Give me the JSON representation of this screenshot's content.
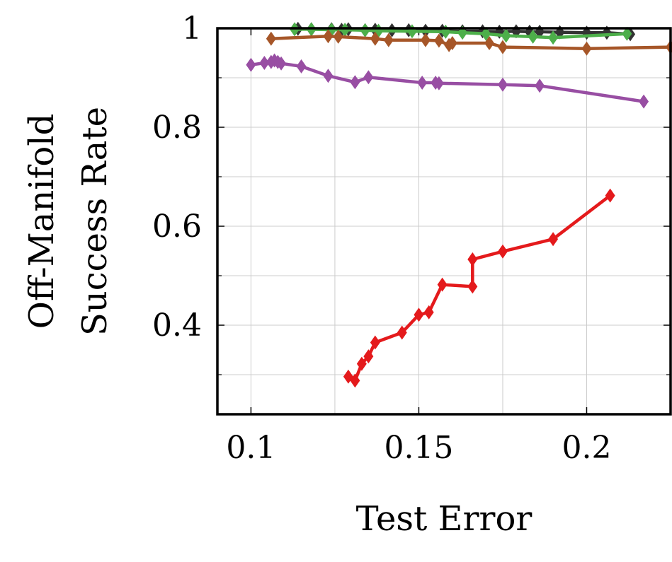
{
  "chart_data": {
    "type": "line",
    "xlabel": "Test Error",
    "ylabel": [
      "Off-Manifold",
      "Success Rate"
    ],
    "xlim": [
      0.09,
      0.225
    ],
    "ylim": [
      0.22,
      1.0
    ],
    "xticks": [
      0.1,
      0.15,
      0.2
    ],
    "xtick_labels": [
      "0.1",
      "0.15",
      "0.2"
    ],
    "yticks": [
      0.4,
      0.6,
      0.8,
      1.0
    ],
    "ytick_labels": [
      "0.4",
      "0.6",
      "0.8",
      "1"
    ],
    "minor_yticks": [
      0.3,
      0.5,
      0.7,
      0.9
    ],
    "grid": true,
    "legend": "none",
    "series": [
      {
        "color": "#333333",
        "marker": "diamond",
        "x": [
          0.114,
          0.118,
          0.124,
          0.127,
          0.129,
          0.134,
          0.137,
          0.142,
          0.147,
          0.152,
          0.157,
          0.163,
          0.169,
          0.174,
          0.179,
          0.183,
          0.186,
          0.192,
          0.2,
          0.206,
          0.213
        ],
        "y": [
          0.999,
          0.998,
          0.998,
          0.997,
          0.998,
          0.996,
          0.997,
          0.996,
          0.996,
          0.995,
          0.995,
          0.994,
          0.994,
          0.993,
          0.994,
          0.993,
          0.993,
          0.992,
          0.991,
          0.991,
          0.988
        ]
      },
      {
        "color": "#4daf4a",
        "marker": "diamond",
        "x": [
          0.113,
          0.118,
          0.124,
          0.128,
          0.134,
          0.138,
          0.148,
          0.158,
          0.163,
          0.17,
          0.176,
          0.184,
          0.19,
          0.212
        ],
        "y": [
          0.998,
          0.998,
          0.997,
          0.997,
          0.996,
          0.995,
          0.994,
          0.993,
          0.991,
          0.989,
          0.985,
          0.983,
          0.981,
          0.989
        ]
      },
      {
        "color": "#a65628",
        "marker": "diamond",
        "x": [
          0.106,
          0.123,
          0.126,
          0.137,
          0.141,
          0.152,
          0.156,
          0.159,
          0.16,
          0.171,
          0.175,
          0.2,
          0.225
        ],
        "y": [
          0.979,
          0.984,
          0.983,
          0.979,
          0.976,
          0.976,
          0.975,
          0.966,
          0.97,
          0.97,
          0.962,
          0.959,
          0.962
        ]
      },
      {
        "color": "#984ea3",
        "marker": "diamond",
        "x": [
          0.1,
          0.104,
          0.106,
          0.107,
          0.108,
          0.109,
          0.115,
          0.123,
          0.131,
          0.135,
          0.151,
          0.155,
          0.156,
          0.175,
          0.186,
          0.217
        ],
        "y": [
          0.926,
          0.93,
          0.932,
          0.935,
          0.932,
          0.929,
          0.923,
          0.904,
          0.891,
          0.901,
          0.89,
          0.89,
          0.889,
          0.886,
          0.884,
          0.852
        ]
      },
      {
        "color": "#e41a1c",
        "marker": "diamond",
        "x": [
          0.129,
          0.131,
          0.133,
          0.135,
          0.137,
          0.145,
          0.15,
          0.153,
          0.157,
          0.166,
          0.166,
          0.175,
          0.19,
          0.207
        ],
        "y": [
          0.296,
          0.288,
          0.322,
          0.337,
          0.365,
          0.385,
          0.421,
          0.426,
          0.482,
          0.478,
          0.533,
          0.549,
          0.574,
          0.662
        ]
      }
    ]
  }
}
